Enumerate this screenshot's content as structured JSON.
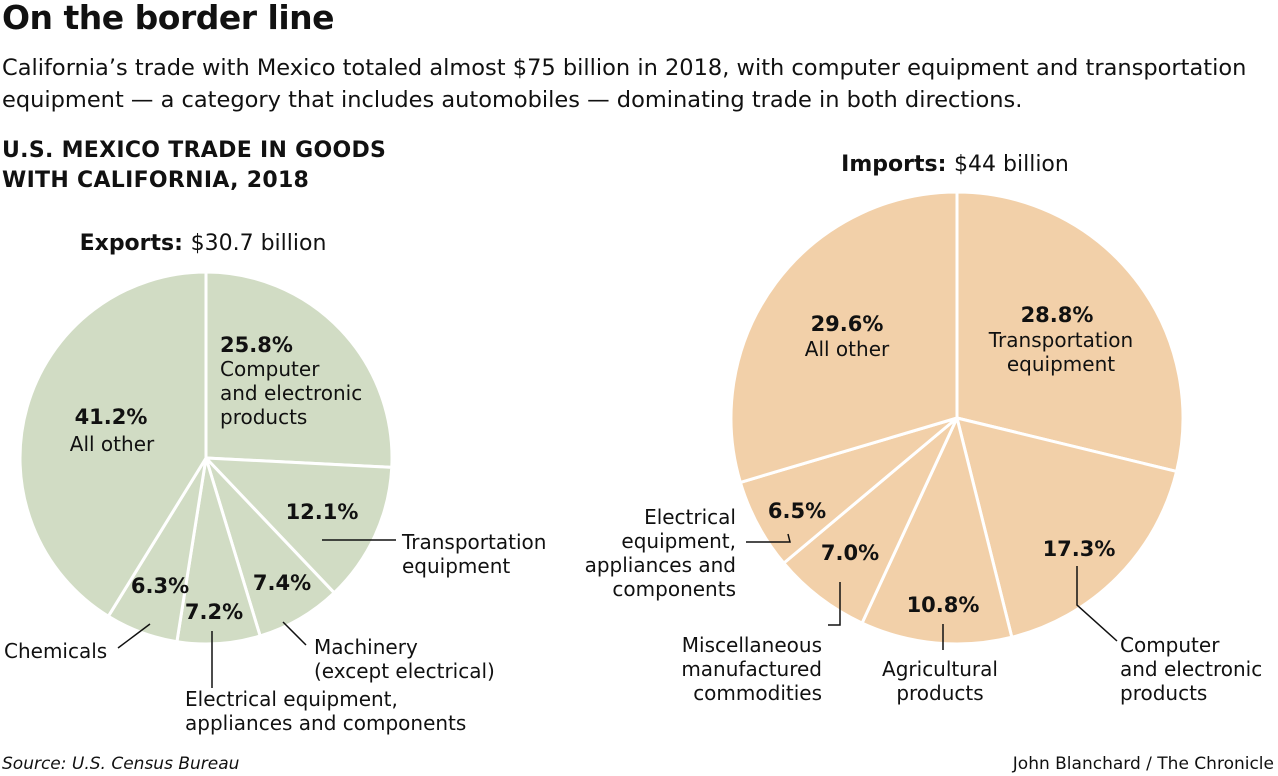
{
  "header": {
    "title": "On the border line",
    "subtitle": "California’s trade with Mexico totaled almost $75 billion in 2018, with computer equipment and transportation equipment — a category that includes automobiles — dominating trade in both directions.",
    "heading_line1": "U.S. MEXICO TRADE IN GOODS",
    "heading_line2": "WITH CALIFORNIA, 2018"
  },
  "footer": {
    "source": "Source: U.S. Census Bureau",
    "credit": "John Blanchard / The Chronicle"
  },
  "chart_data": [
    {
      "type": "pie",
      "title_bold": "Exports:",
      "title_rest": "$30.7 billion",
      "color": "#d1dcc4",
      "slices": [
        {
          "label": "Computer and electronic products",
          "value": 25.8,
          "pct_text": "25.8%",
          "lines": [
            "Computer",
            "and electronic",
            "products"
          ]
        },
        {
          "label": "Transportation equipment",
          "value": 12.1,
          "pct_text": "12.1%",
          "lines": [
            "Transportation",
            "equipment"
          ]
        },
        {
          "label": "Machinery (except electrical)",
          "value": 7.4,
          "pct_text": "7.4%",
          "lines": [
            "Machinery",
            "(except electrical)"
          ]
        },
        {
          "label": "Electrical equipment, appliances and components",
          "value": 7.2,
          "pct_text": "7.2%",
          "lines": [
            "Electrical equipment,",
            "appliances and components"
          ]
        },
        {
          "label": "Chemicals",
          "value": 6.3,
          "pct_text": "6.3%",
          "lines": [
            "Chemicals"
          ]
        },
        {
          "label": "All other",
          "value": 41.2,
          "pct_text": "41.2%",
          "lines": [
            "All other"
          ]
        }
      ]
    },
    {
      "type": "pie",
      "title_bold": "Imports:",
      "title_rest": "$44 billion",
      "color": "#f2d0a9",
      "slices": [
        {
          "label": "Transportation equipment",
          "value": 28.8,
          "pct_text": "28.8%",
          "lines": [
            "Transportation",
            "equipment"
          ]
        },
        {
          "label": "Computer and electronic products",
          "value": 17.3,
          "pct_text": "17.3%",
          "lines": [
            "Computer",
            "and electronic",
            "products"
          ]
        },
        {
          "label": "Agricultural products",
          "value": 10.8,
          "pct_text": "10.8%",
          "lines": [
            "Agricultural",
            "products"
          ]
        },
        {
          "label": "Miscellaneous manufactured commodities",
          "value": 7.0,
          "pct_text": "7.0%",
          "lines": [
            "Miscellaneous",
            "manufactured",
            "commodities"
          ]
        },
        {
          "label": "Electrical equipment, appliances and components",
          "value": 6.5,
          "pct_text": "6.5%",
          "lines": [
            "Electrical",
            "equipment,",
            "appliances and",
            "components"
          ]
        },
        {
          "label": "All other",
          "value": 29.6,
          "pct_text": "29.6%",
          "lines": [
            "All other"
          ]
        }
      ]
    }
  ]
}
